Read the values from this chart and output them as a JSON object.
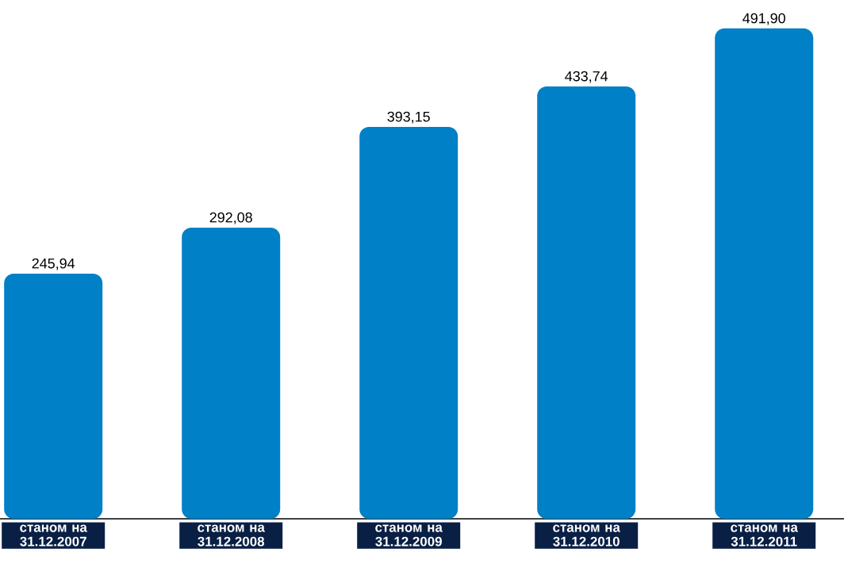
{
  "chart_data": {
    "type": "bar",
    "categories": [
      "станом на 31.12.2007",
      "станом на 31.12.2008",
      "станом на 31.12.2009",
      "станом на 31.12.2010",
      "станом на 31.12.2011"
    ],
    "values": [
      245.94,
      292.08,
      393.15,
      433.74,
      491.9
    ],
    "value_labels": [
      "245,94",
      "292,08",
      "393,15",
      "433,74",
      "491,90"
    ],
    "color": "#0080c6"
  }
}
